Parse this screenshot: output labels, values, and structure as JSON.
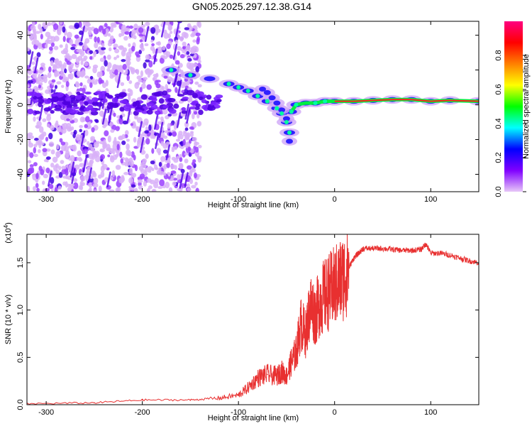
{
  "title": "GN05.2025.297.12.38.G14",
  "chart_data": [
    {
      "type": "heatmap",
      "title": "GN05.2025.297.12.38.G14",
      "xlabel": "Height of straight line (km)",
      "ylabel": "Frequency (Hz)",
      "xlim": [
        -320,
        150
      ],
      "ylim": [
        -50,
        48
      ],
      "xticks": [
        -300,
        -200,
        -100,
        0,
        100
      ],
      "yticks": [
        -40,
        -20,
        0,
        20,
        40
      ],
      "colorbar": {
        "label": "Normalized spectral amplitude",
        "range": [
          0.0,
          1.0
        ],
        "ticks": [
          0.0,
          0.2,
          0.4,
          0.6,
          0.8
        ],
        "tick_labels": [
          "0.0",
          "0.2",
          "0.4",
          "0.6",
          "0.8"
        ],
        "colormap": [
          "#e8c8f8",
          "#8000ff",
          "#0000ff",
          "#00ffff",
          "#00ff00",
          "#ffff00",
          "#ff8000",
          "#ff0000",
          "#ff0080"
        ]
      },
      "ridge": {
        "x": [
          -170,
          -150,
          -130,
          -110,
          -100,
          -90,
          -80,
          -70,
          -60,
          -55,
          -50,
          -47,
          -45,
          -40,
          -30,
          -20,
          -10,
          0,
          20,
          40,
          60,
          80,
          100,
          120,
          150
        ],
        "freq": [
          20,
          17,
          15,
          12,
          10,
          8,
          5,
          2,
          -2,
          -5,
          -10,
          -16,
          -4,
          0,
          1,
          1,
          2,
          2,
          2,
          2.5,
          3,
          3,
          2,
          2.5,
          2
        ]
      },
      "upper_branch": {
        "x": [
          -75,
          -70,
          -65,
          -60,
          -55,
          -50,
          -47
        ],
        "freq": [
          9,
          7,
          4,
          1,
          -3,
          -8,
          -21
        ]
      }
    },
    {
      "type": "line",
      "xlabel": "Height of straight line (km)",
      "ylabel": "SNR (10 * v/v)",
      "y_multiplier": "(x10",
      "y_multiplier_exp": "4",
      "y_multiplier_close": ")",
      "xlim": [
        -320,
        150
      ],
      "ylim": [
        0,
        1.8
      ],
      "xticks": [
        -300,
        -200,
        -100,
        0,
        100
      ],
      "yticks": [
        0.0,
        0.5,
        1.0,
        1.5
      ],
      "ytick_labels": [
        "0.0",
        "0.5",
        "1.0",
        "1.5"
      ],
      "line_color": "#e83030",
      "x": [
        -320,
        -250,
        -200,
        -150,
        -120,
        -100,
        -90,
        -80,
        -70,
        -60,
        -55,
        -50,
        -45,
        -40,
        -35,
        -30,
        -25,
        -20,
        -15,
        -10,
        -5,
        0,
        5,
        10,
        15,
        20,
        25,
        30,
        40,
        50,
        60,
        70,
        80,
        90,
        95,
        100,
        110,
        120,
        130,
        140,
        150
      ],
      "values": [
        0.01,
        0.02,
        0.05,
        0.05,
        0.07,
        0.1,
        0.18,
        0.28,
        0.32,
        0.3,
        0.35,
        0.3,
        0.45,
        0.55,
        0.85,
        0.75,
        1.05,
        0.95,
        1.1,
        1.15,
        1.2,
        1.25,
        1.3,
        1.35,
        1.45,
        1.55,
        1.6,
        1.65,
        1.65,
        1.65,
        1.64,
        1.63,
        1.63,
        1.64,
        1.7,
        1.6,
        1.6,
        1.58,
        1.55,
        1.52,
        1.5
      ]
    }
  ]
}
